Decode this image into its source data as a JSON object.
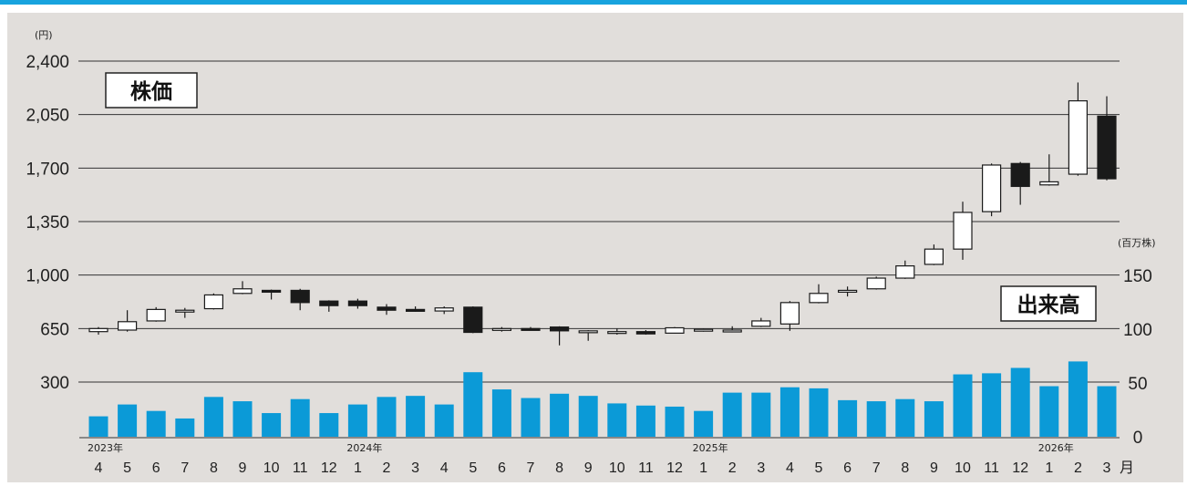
{
  "colors": {
    "top_rule": "#18a3de",
    "background": "#e1dedb",
    "gridline": "#333333",
    "volume_bar": "#0b9ad7",
    "up_candle": "#ffffff",
    "down_candle": "#1a1a1a"
  },
  "chart_data": {
    "type": "candlestick",
    "price_panel_label": "株価",
    "volume_panel_label": "出来高",
    "left_unit": "(円)",
    "right_unit": "(百万株)",
    "month_suffix": "月",
    "left_axis_ticks": [
      "2,400",
      "2,050",
      "1,700",
      "1,350",
      "1,000",
      "650",
      "300"
    ],
    "right_axis_ticks": [
      "150",
      "100",
      "50",
      "0"
    ],
    "price_axis_range": [
      300,
      2400
    ],
    "volume_axis_range": [
      0,
      150
    ],
    "grid": true,
    "year_labels": [
      {
        "index": 0,
        "label": "2023年"
      },
      {
        "index": 9,
        "label": "2024年"
      },
      {
        "index": 21,
        "label": "2025年"
      },
      {
        "index": 33,
        "label": "2026年"
      }
    ],
    "months": [
      "4",
      "5",
      "6",
      "7",
      "8",
      "9",
      "10",
      "11",
      "12",
      "1",
      "2",
      "3",
      "4",
      "5",
      "6",
      "7",
      "8",
      "9",
      "10",
      "11",
      "12",
      "1",
      "2",
      "3",
      "4",
      "5",
      "6",
      "7",
      "8",
      "9",
      "10",
      "11",
      "12",
      "1",
      "2",
      "3"
    ],
    "candles": [
      {
        "open": 630,
        "high": 660,
        "low": 610,
        "close": 650
      },
      {
        "open": 640,
        "high": 770,
        "low": 630,
        "close": 695
      },
      {
        "open": 700,
        "high": 790,
        "low": 695,
        "close": 775
      },
      {
        "open": 760,
        "high": 785,
        "low": 720,
        "close": 770
      },
      {
        "open": 780,
        "high": 880,
        "low": 775,
        "close": 870
      },
      {
        "open": 880,
        "high": 960,
        "low": 875,
        "close": 910
      },
      {
        "open": 900,
        "high": 905,
        "low": 840,
        "close": 890
      },
      {
        "open": 900,
        "high": 910,
        "low": 770,
        "close": 820
      },
      {
        "open": 830,
        "high": 835,
        "low": 760,
        "close": 800
      },
      {
        "open": 830,
        "high": 845,
        "low": 780,
        "close": 800
      },
      {
        "open": 790,
        "high": 810,
        "low": 740,
        "close": 770
      },
      {
        "open": 775,
        "high": 795,
        "low": 760,
        "close": 770
      },
      {
        "open": 765,
        "high": 795,
        "low": 745,
        "close": 785
      },
      {
        "open": 790,
        "high": 795,
        "low": 620,
        "close": 625
      },
      {
        "open": 640,
        "high": 660,
        "low": 630,
        "close": 650
      },
      {
        "open": 650,
        "high": 660,
        "low": 640,
        "close": 645
      },
      {
        "open": 660,
        "high": 665,
        "low": 540,
        "close": 635
      },
      {
        "open": 630,
        "high": 640,
        "low": 570,
        "close": 635
      },
      {
        "open": 625,
        "high": 650,
        "low": 610,
        "close": 630
      },
      {
        "open": 630,
        "high": 640,
        "low": 610,
        "close": 615
      },
      {
        "open": 620,
        "high": 660,
        "low": 618,
        "close": 655
      },
      {
        "open": 640,
        "high": 650,
        "low": 630,
        "close": 645
      },
      {
        "open": 635,
        "high": 665,
        "low": 625,
        "close": 640
      },
      {
        "open": 665,
        "high": 720,
        "low": 660,
        "close": 700
      },
      {
        "open": 680,
        "high": 830,
        "low": 635,
        "close": 820
      },
      {
        "open": 820,
        "high": 940,
        "low": 815,
        "close": 880
      },
      {
        "open": 890,
        "high": 925,
        "low": 860,
        "close": 900
      },
      {
        "open": 910,
        "high": 990,
        "low": 905,
        "close": 980
      },
      {
        "open": 980,
        "high": 1095,
        "low": 975,
        "close": 1060
      },
      {
        "open": 1070,
        "high": 1200,
        "low": 1065,
        "close": 1170
      },
      {
        "open": 1170,
        "high": 1480,
        "low": 1100,
        "close": 1410
      },
      {
        "open": 1415,
        "high": 1730,
        "low": 1385,
        "close": 1720
      },
      {
        "open": 1730,
        "high": 1740,
        "low": 1460,
        "close": 1580
      },
      {
        "open": 1590,
        "high": 1790,
        "low": 1585,
        "close": 1610
      },
      {
        "open": 1660,
        "high": 2260,
        "low": 1650,
        "close": 2140
      },
      {
        "open": 2040,
        "high": 2170,
        "low": 1620,
        "close": 1630
      }
    ],
    "volume": [
      19,
      30,
      24,
      17,
      37,
      33,
      22,
      35,
      22,
      30,
      37,
      38,
      30,
      60,
      44,
      36,
      40,
      38,
      31,
      29,
      28,
      24,
      41,
      41,
      46,
      45,
      34,
      33,
      35,
      33,
      58,
      59,
      64,
      47,
      70,
      47
    ]
  }
}
